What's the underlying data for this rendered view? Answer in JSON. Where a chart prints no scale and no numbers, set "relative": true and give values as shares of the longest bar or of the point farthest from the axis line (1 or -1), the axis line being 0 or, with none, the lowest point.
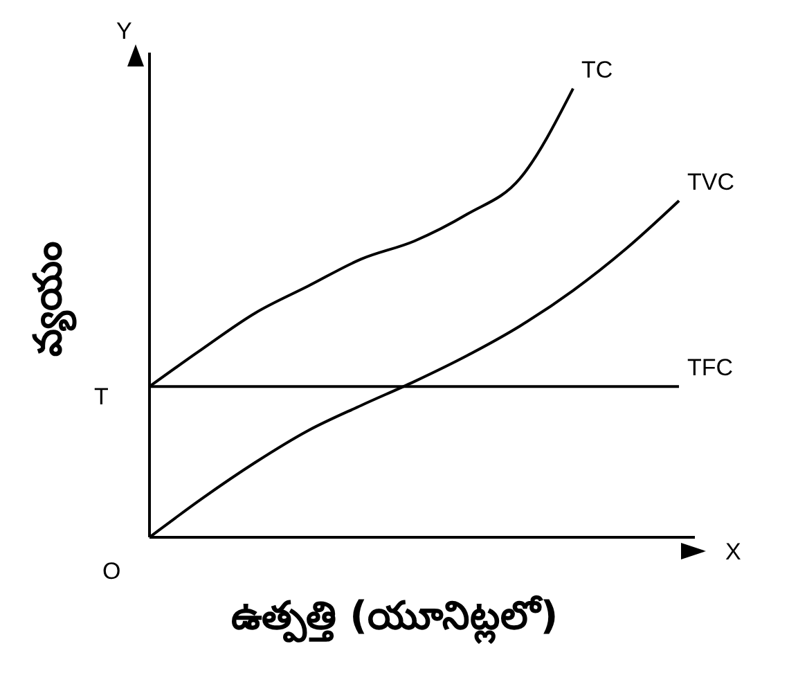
{
  "chart_data": {
    "type": "line",
    "relative": true,
    "xlabel": "ఉత్పత్తి (యూనిట్లలో)",
    "ylabel": "వ్యయం",
    "categories": [
      null,
      null,
      null,
      null,
      null,
      null,
      null,
      null,
      null,
      null,
      null
    ],
    "series": [
      {
        "name": "TC",
        "color": "#000000",
        "values": [
          0.336,
          0.42,
          0.5,
          0.56,
          0.62,
          0.66,
          0.72,
          0.8,
          1.0,
          null,
          null
        ]
      },
      {
        "name": "TVC",
        "color": "#000000",
        "values": [
          0,
          0.087,
          0.167,
          0.238,
          0.294,
          0.347,
          0.405,
          0.471,
          0.55,
          0.643,
          0.75
        ]
      },
      {
        "name": "TFC",
        "color": "#000000",
        "values": [
          0.336,
          0.336,
          0.336,
          0.336,
          0.336,
          0.336,
          0.336,
          0.336,
          0.336,
          0.336,
          0.336
        ]
      }
    ],
    "annotations": [
      "Y",
      "X",
      "O",
      "T"
    ],
    "legend": false,
    "marker": "none",
    "grid": false,
    "line_style": "solid"
  }
}
